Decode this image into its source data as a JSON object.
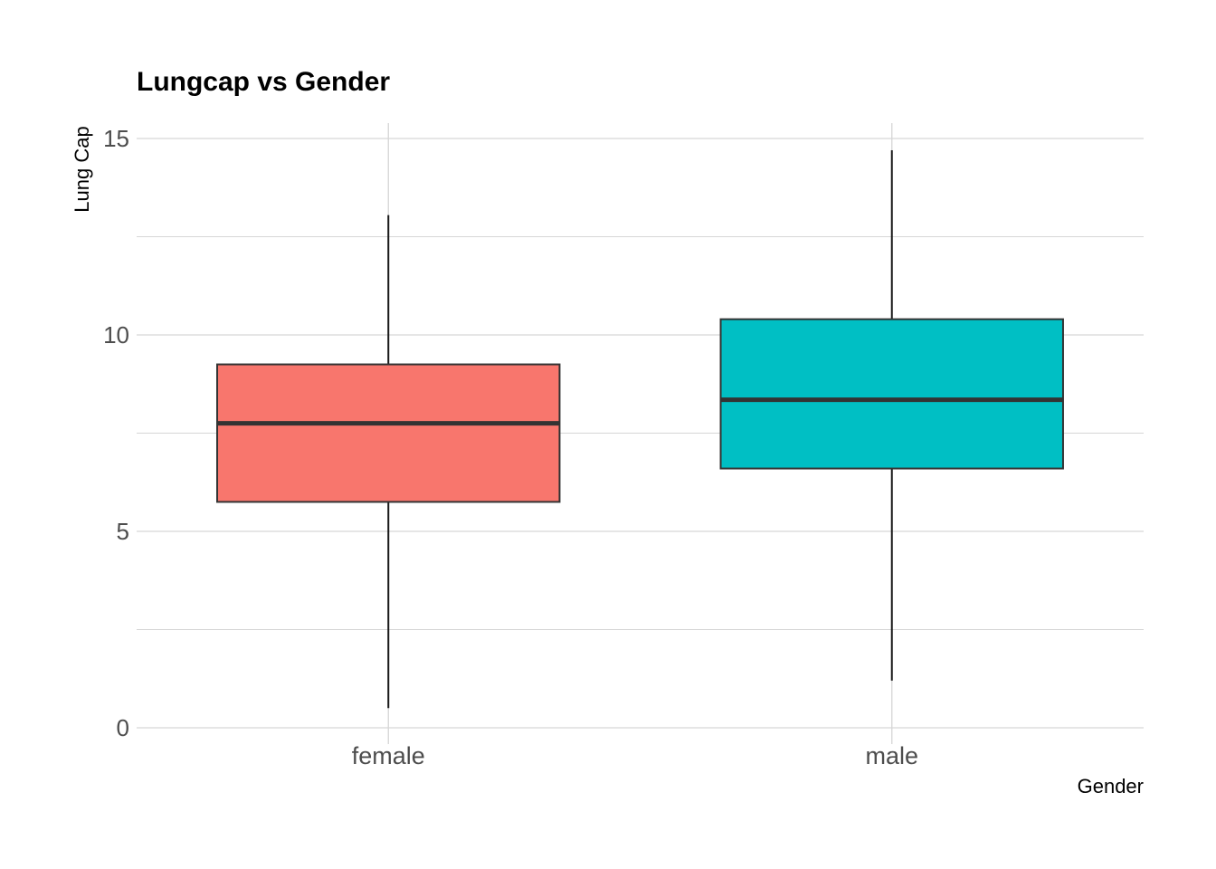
{
  "chart_data": {
    "type": "box",
    "title": "Lungcap vs Gender",
    "xlabel": "Gender",
    "ylabel": "Lung Cap",
    "categories": [
      "female",
      "male"
    ],
    "ylim": [
      0,
      15.4
    ],
    "yticks": [
      0,
      5,
      10,
      15
    ],
    "grid": true,
    "legend": "none",
    "boxes": [
      {
        "category": "female",
        "min": 0.5,
        "q1": 5.75,
        "median": 7.75,
        "q3": 9.25,
        "max": 13.05,
        "color": "#F8766D"
      },
      {
        "category": "male",
        "min": 1.2,
        "q1": 6.6,
        "median": 8.35,
        "q3": 10.4,
        "max": 14.7,
        "color": "#00BFC4"
      }
    ]
  },
  "colors": {
    "grid": "#d6d6d6",
    "box_outline": "#333333",
    "tick_text": "#4d4d4d"
  }
}
